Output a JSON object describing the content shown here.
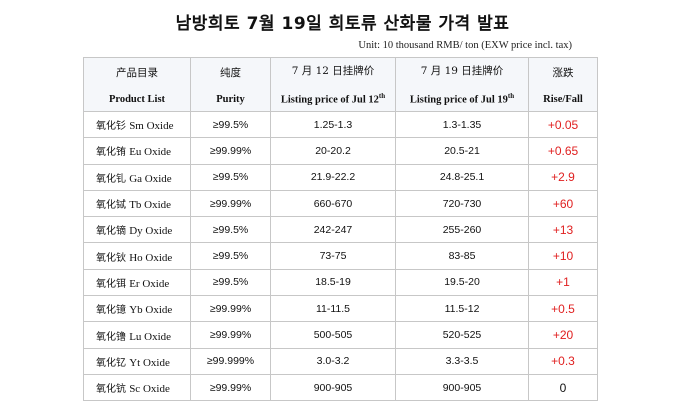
{
  "title": "남방희토 7월 19일 희토류 산화물 가격 발표",
  "unit": "Unit: 10 thousand RMB/ ton (EXW price incl. tax)",
  "headers": [
    {
      "cn": "产品目录",
      "en": "Product List"
    },
    {
      "cn": "纯度",
      "en": "Purity"
    },
    {
      "cn": "7 月 12 日挂牌价",
      "en": "Listing price of Jul 12",
      "sup": "th"
    },
    {
      "cn": "7 月 19 日挂牌价",
      "en": "Listing price of Jul 19",
      "sup": "th"
    },
    {
      "cn": "涨跌",
      "en": "Rise/Fall"
    }
  ],
  "rows": [
    {
      "cn": "氧化钐",
      "en": "Sm Oxide",
      "purity": "≥99.5%",
      "jul12": "1.25-1.3",
      "jul19": "1.3-1.35",
      "change": "+0.05"
    },
    {
      "cn": "氧化铕",
      "en": "Eu Oxide",
      "purity": "≥99.99%",
      "jul12": "20-20.2",
      "jul19": "20.5-21",
      "change": "+0.65"
    },
    {
      "cn": "氧化钆",
      "en": "Ga Oxide",
      "purity": "≥99.5%",
      "jul12": "21.9-22.2",
      "jul19": "24.8-25.1",
      "change": "+2.9"
    },
    {
      "cn": "氧化铽",
      "en": "Tb Oxide",
      "purity": "≥99.99%",
      "jul12": "660-670",
      "jul19": "720-730",
      "change": "+60"
    },
    {
      "cn": "氧化镝",
      "en": "Dy Oxide",
      "purity": "≥99.5%",
      "jul12": "242-247",
      "jul19": "255-260",
      "change": "+13"
    },
    {
      "cn": "氧化钬",
      "en": "Ho Oxide",
      "purity": "≥99.5%",
      "jul12": "73-75",
      "jul19": "83-85",
      "change": "+10"
    },
    {
      "cn": "氧化铒",
      "en": "Er Oxide",
      "purity": "≥99.5%",
      "jul12": "18.5-19",
      "jul19": "19.5-20",
      "change": "+1"
    },
    {
      "cn": "氧化镱",
      "en": "Yb Oxide",
      "purity": "≥99.99%",
      "jul12": "11-11.5",
      "jul19": "11.5-12",
      "change": "+0.5"
    },
    {
      "cn": "氧化镥",
      "en": "Lu Oxide",
      "purity": "≥99.99%",
      "jul12": "500-505",
      "jul19": "520-525",
      "change": "+20"
    },
    {
      "cn": "氧化钇",
      "en": "Yt Oxide",
      "purity": "≥99.999%",
      "jul12": "3.0-3.2",
      "jul19": "3.3-3.5",
      "change": "+0.3"
    },
    {
      "cn": "氧化钪",
      "en": "Sc Oxide",
      "purity": "≥99.99%",
      "jul12": "900-905",
      "jul19": "900-905",
      "change": "0"
    }
  ],
  "colors": {
    "rise": "#e02020",
    "header_bg": "#f5f7fa",
    "border": "#c7c7c7"
  }
}
